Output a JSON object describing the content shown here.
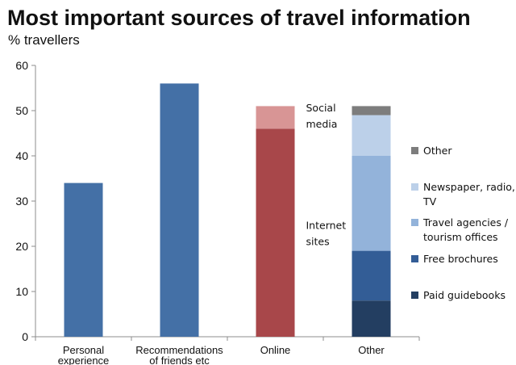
{
  "chart_data": {
    "type": "bar",
    "title": "Most important sources of travel information",
    "subtitle": "% travellers",
    "xlabel": "",
    "ylabel": "",
    "ylim": [
      0,
      60
    ],
    "yticks": [
      0,
      10,
      20,
      30,
      40,
      50,
      60
    ],
    "grid": false,
    "legend_position": "right",
    "categories": [
      {
        "lines": [
          "Personal",
          "experience"
        ]
      },
      {
        "lines": [
          "Recommendations",
          "of friends etc"
        ]
      },
      {
        "lines": [
          "Online"
        ]
      },
      {
        "lines": [
          "Other"
        ]
      }
    ],
    "bars": [
      {
        "category_index": 0,
        "segments": [
          {
            "value": 34,
            "color": "#4470a6"
          }
        ]
      },
      {
        "category_index": 1,
        "segments": [
          {
            "value": 56,
            "color": "#4470a6"
          }
        ]
      },
      {
        "category_index": 2,
        "segments": [
          {
            "series": "Internet sites",
            "value": 46,
            "color": "#a8474a"
          },
          {
            "series": "Social media",
            "value": 5,
            "color": "#d89595"
          }
        ]
      },
      {
        "category_index": 3,
        "segments": [
          {
            "series": "Paid guidebooks",
            "value": 8,
            "color": "#233e61"
          },
          {
            "series": "Free brochures",
            "value": 11,
            "color": "#335d96"
          },
          {
            "series": "Travel agencies / tourism offices",
            "value": 21,
            "color": "#93b3da"
          },
          {
            "series": "Newspaper, radio, TV",
            "value": 9,
            "color": "#bcd0e9"
          },
          {
            "series": "Other",
            "value": 2,
            "color": "#7d7d7d"
          }
        ]
      }
    ],
    "annotations": [
      {
        "lines": [
          "Social",
          "media"
        ]
      },
      {
        "lines": [
          "Internet",
          "sites"
        ]
      }
    ],
    "legend": [
      {
        "lines": [
          "Other"
        ],
        "color": "#7d7d7d"
      },
      {
        "lines": [
          "Newspaper, radio,",
          "TV"
        ],
        "color": "#bcd0e9"
      },
      {
        "lines": [
          "Travel agencies /",
          "tourism offices"
        ],
        "color": "#93b3da"
      },
      {
        "lines": [
          "Free brochures"
        ],
        "color": "#335d96"
      },
      {
        "lines": [
          "Paid guidebooks"
        ],
        "color": "#233e61"
      }
    ]
  }
}
